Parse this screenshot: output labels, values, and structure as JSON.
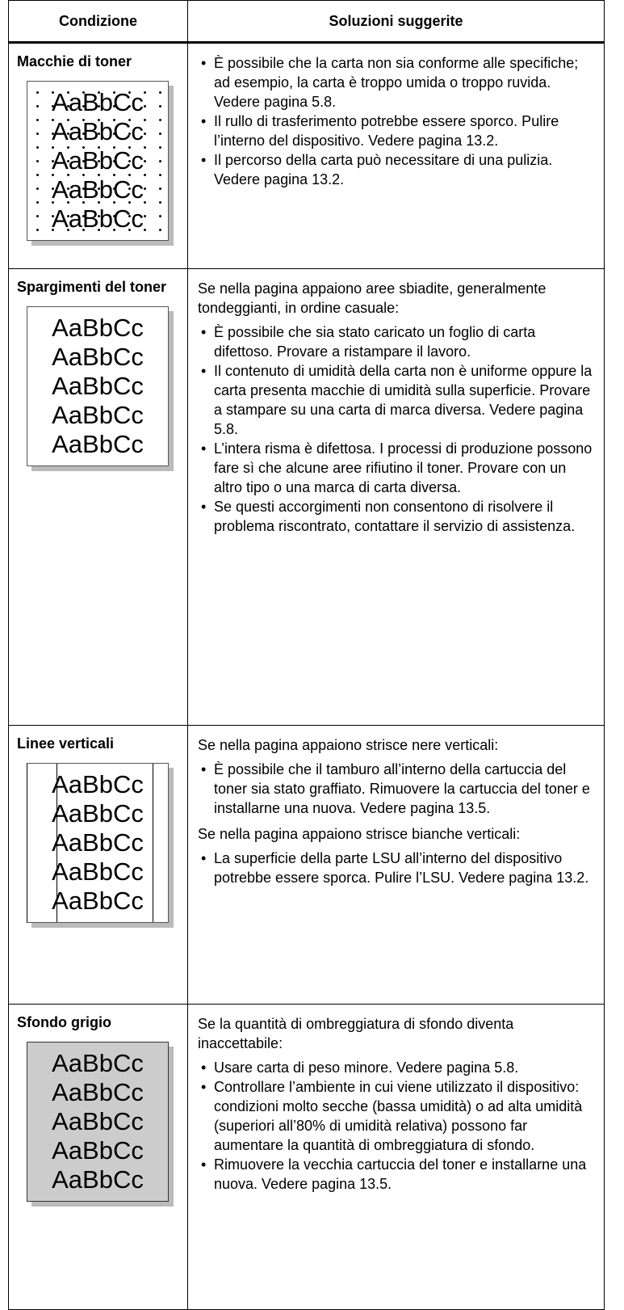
{
  "table": {
    "headers": [
      "Condizione",
      "Soluzioni suggerite"
    ],
    "rows": [
      {
        "condition": "Macchie di toner",
        "sample": "AaBbCc",
        "blocks": [
          {
            "bullets": [
              "È possibile che la carta non sia conforme alle specifiche; ad esempio, la carta è troppo umida o troppo ruvida. Vedere pagina 5.8.",
              "Il rullo di trasferimento potrebbe essere sporco. Pulire l’interno del dispositivo. Vedere pagina 13.2.",
              "Il percorso della carta può necessitare di una pulizia. Vedere pagina 13.2."
            ]
          }
        ]
      },
      {
        "condition": "Spargimenti del toner",
        "sample": "AaBbCc",
        "blocks": [
          {
            "text": "Se nella pagina appaiono aree sbiadite, generalmente tondeggianti, in ordine casuale:"
          },
          {
            "bullets": [
              "È possibile che sia stato caricato un foglio di carta difettoso. Provare a ristampare il lavoro.",
              "Il contenuto di umidità della carta non è uniforme oppure la carta presenta macchie di umidità sulla superficie. Provare a stampare su una carta di marca diversa. Vedere pagina 5.8.",
              "L’intera risma è difettosa. I processi di produzione possono fare sì che alcune aree rifiutino il toner. Provare con un altro tipo o una marca di carta diversa.",
              "Se questi accorgimenti non consentono di risolvere il problema riscontrato, contattare il servizio di assistenza."
            ]
          }
        ]
      },
      {
        "condition": "Linee verticali",
        "sample": "AaBbCc",
        "blocks": [
          {
            "text": "Se nella pagina appaiono strisce nere verticali:"
          },
          {
            "bullets": [
              "È possibile che il tamburo all’interno della cartuccia del toner sia stato graffiato. Rimuovere la cartuccia del toner e installarne una nuova. Vedere pagina 13.5."
            ]
          },
          {
            "text": "Se nella pagina appaiono strisce bianche verticali:"
          },
          {
            "bullets": [
              "La superficie della parte LSU all’interno del dispositivo potrebbe essere sporca. Pulire l’LSU. Vedere pagina 13.2."
            ]
          }
        ]
      },
      {
        "condition": "Sfondo grigio",
        "sample": "AaBbCc",
        "blocks": [
          {
            "text": "Se la quantità di ombreggiatura di sfondo diventa inaccettabile:"
          },
          {
            "bullets": [
              "Usare carta di peso minore. Vedere pagina 5.8.",
              "Controllare l’ambiente in cui viene utilizzato il dispositivo: condizioni molto secche (bassa umidità) o ad alta umidità (superiori all’80% di umidità relativa) possono far aumentare la quantità di ombreggiatura di sfondo.",
              "Rimuovere la vecchia cartuccia del toner e installarne una nuova. Vedere pagina 13.5."
            ]
          }
        ]
      }
    ]
  }
}
